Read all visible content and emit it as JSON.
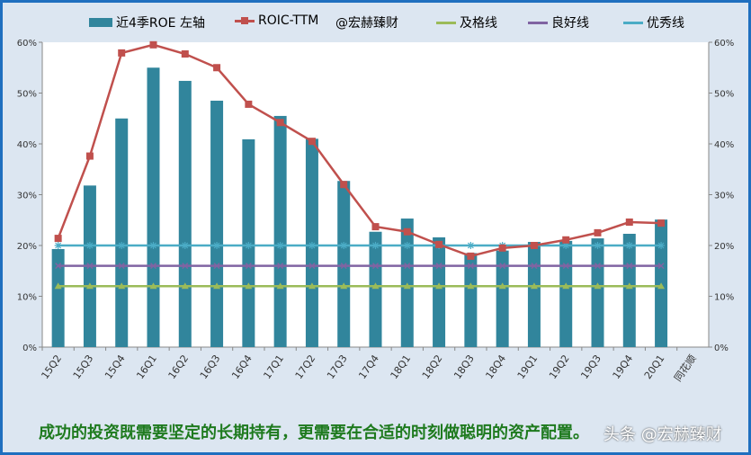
{
  "chart_data": {
    "type": "bar+line",
    "categories": [
      "15Q2",
      "15Q3",
      "15Q4",
      "16Q1",
      "16Q2",
      "16Q3",
      "16Q4",
      "17Q1",
      "17Q2",
      "17Q3",
      "17Q4",
      "18Q1",
      "18Q2",
      "18Q3",
      "18Q4",
      "19Q1",
      "19Q2",
      "19Q3",
      "19Q4",
      "20Q1",
      "同花顺"
    ],
    "ylim": [
      0,
      60
    ],
    "yticks": [
      "0%",
      "10%",
      "20%",
      "30%",
      "40%",
      "50%",
      "60%"
    ],
    "y2ticks": [
      "0%",
      "10%",
      "20%",
      "30%",
      "40%",
      "50%",
      "60%"
    ],
    "series": [
      {
        "name": "近4季ROE 左轴",
        "type": "bar",
        "color": "#31859c",
        "values": [
          19.3,
          31.8,
          45,
          55,
          52.4,
          48.5,
          40.9,
          45.5,
          41,
          32.7,
          22.7,
          25.3,
          21.6,
          18.5,
          19,
          20.7,
          20.9,
          21.4,
          22.3,
          25.1,
          null
        ]
      },
      {
        "name": "ROIC-TTM",
        "type": "line",
        "color": "#c0504d",
        "marker": "square",
        "values": [
          21.4,
          37.6,
          57.9,
          59.5,
          57.7,
          55,
          47.8,
          44.2,
          40.5,
          32,
          23.7,
          22.7,
          20.2,
          17.9,
          19.5,
          20,
          21.1,
          22.5,
          24.6,
          24.4,
          null
        ]
      },
      {
        "name": "及格线",
        "type": "line",
        "color": "#9bbb59",
        "marker": "triangle",
        "value": 12
      },
      {
        "name": "良好线",
        "type": "line",
        "color": "#8064a2",
        "marker": "x",
        "value": 16
      },
      {
        "name": "优秀线",
        "type": "line",
        "color": "#4bacc6",
        "marker": "star",
        "value": 20
      }
    ],
    "legend_extra": "@宏赫臻财",
    "legend_position": "top",
    "grid": false
  },
  "footer": "成功的投资既需要坚定的长期持有，更需要在合适的时刻做聪明的资产配置。",
  "watermark": "头条 @宏赫臻财"
}
